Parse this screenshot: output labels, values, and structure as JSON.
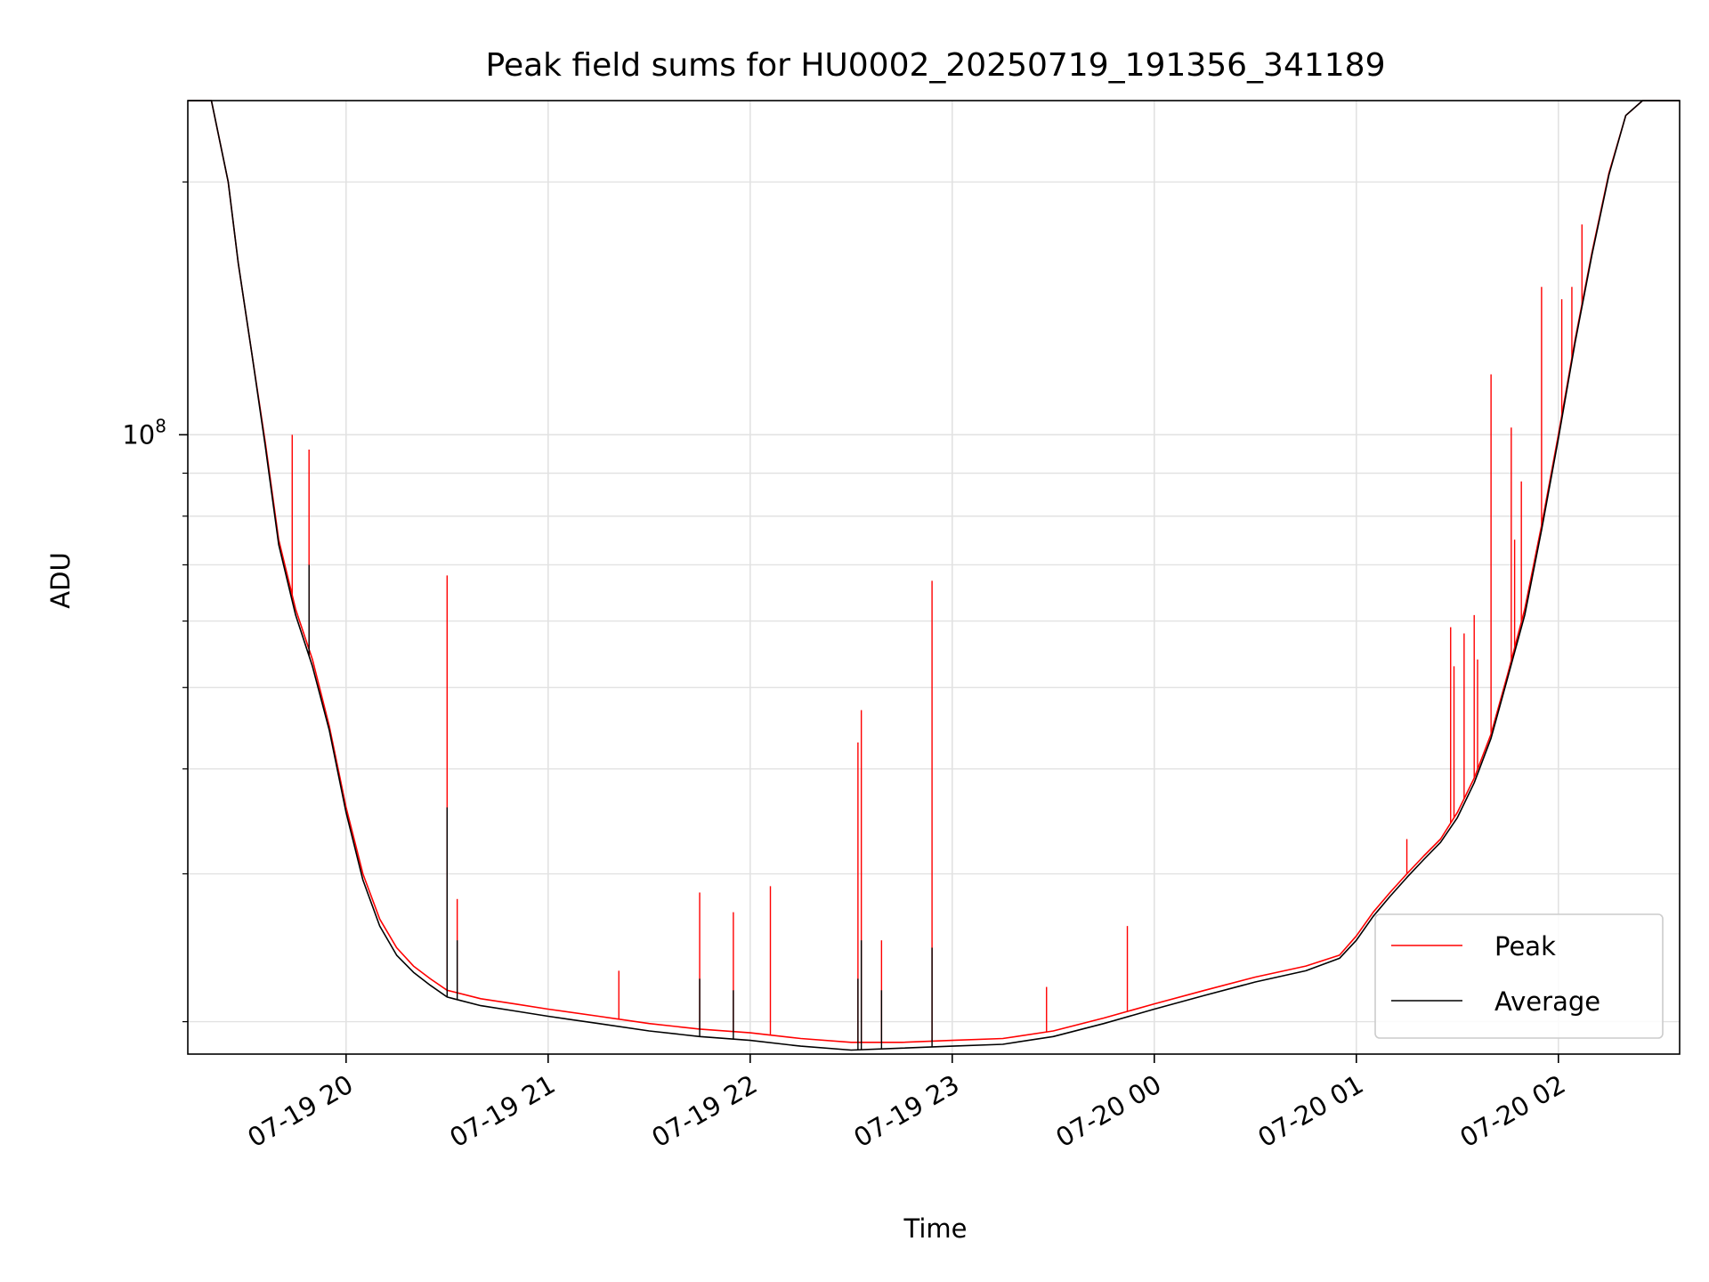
{
  "chart_data": {
    "type": "line",
    "title": "Peak field sums for HU0002_20250719_191356_341189",
    "xlabel": "Time",
    "ylabel": "ADU",
    "yscale": "log",
    "grid": true,
    "legend_placement": "lower-right",
    "xlim": [
      "2025-07-19 19:13",
      "2025-07-20 02:36"
    ],
    "ylim": [
      18300000,
      250000000
    ],
    "x_tick_labels": [
      "07-19 20",
      "07-19 21",
      "07-19 22",
      "07-19 23",
      "07-20 00",
      "07-20 01",
      "07-20 02"
    ],
    "y_tick_labels": [
      {
        "base": "10",
        "exp": "8"
      }
    ],
    "series": [
      {
        "name": "Peak",
        "color": "#ff0000",
        "x": [
          "2025-07-19 19:13",
          "2025-07-19 19:20",
          "2025-07-19 19:25",
          "2025-07-19 19:28",
          "2025-07-19 19:32",
          "2025-07-19 19:36",
          "2025-07-19 19:40",
          "2025-07-19 19:45",
          "2025-07-19 19:50",
          "2025-07-19 19:55",
          "2025-07-19 20:00",
          "2025-07-19 20:05",
          "2025-07-19 20:10",
          "2025-07-19 20:15",
          "2025-07-19 20:20",
          "2025-07-19 20:25",
          "2025-07-19 20:30",
          "2025-07-19 20:40",
          "2025-07-19 20:50",
          "2025-07-19 21:00",
          "2025-07-19 21:15",
          "2025-07-19 21:30",
          "2025-07-19 21:45",
          "2025-07-19 22:00",
          "2025-07-19 22:15",
          "2025-07-19 22:30",
          "2025-07-19 22:45",
          "2025-07-19 23:00",
          "2025-07-19 23:15",
          "2025-07-19 23:30",
          "2025-07-19 23:45",
          "2025-07-20 00:00",
          "2025-07-20 00:15",
          "2025-07-20 00:30",
          "2025-07-20 00:45",
          "2025-07-20 00:55",
          "2025-07-20 01:00",
          "2025-07-20 01:05",
          "2025-07-20 01:10",
          "2025-07-20 01:15",
          "2025-07-20 01:20",
          "2025-07-20 01:25",
          "2025-07-20 01:30",
          "2025-07-20 01:35",
          "2025-07-20 01:40",
          "2025-07-20 01:45",
          "2025-07-20 01:50",
          "2025-07-20 01:55",
          "2025-07-20 02:00",
          "2025-07-20 02:05",
          "2025-07-20 02:10",
          "2025-07-20 02:15",
          "2025-07-20 02:20",
          "2025-07-20 02:25",
          "2025-07-20 02:36"
        ],
        "y": [
          250000000,
          250000000,
          200000000,
          160000000,
          125000000,
          98000000,
          75000000,
          62000000,
          54000000,
          45000000,
          36000000,
          30000000,
          26500000,
          24500000,
          23300000,
          22500000,
          21800000,
          21300000,
          21000000,
          20700000,
          20300000,
          19900000,
          19600000,
          19400000,
          19100000,
          18900000,
          18900000,
          19000000,
          19100000,
          19500000,
          20200000,
          21000000,
          21800000,
          22600000,
          23300000,
          24000000,
          25300000,
          27000000,
          28500000,
          30000000,
          31500000,
          33000000,
          35500000,
          39000000,
          44000000,
          52000000,
          62000000,
          78000000,
          100000000,
          130000000,
          165000000,
          205000000,
          240000000,
          250000000,
          250000000
        ],
        "spikes": [
          {
            "x": "2025-07-19 19:44",
            "y": 100000000
          },
          {
            "x": "2025-07-19 19:49",
            "y": 96000000
          },
          {
            "x": "2025-07-19 20:30",
            "y": 68000000
          },
          {
            "x": "2025-07-19 20:33",
            "y": 28000000
          },
          {
            "x": "2025-07-19 21:21",
            "y": 23000000
          },
          {
            "x": "2025-07-19 21:45",
            "y": 28500000
          },
          {
            "x": "2025-07-19 21:55",
            "y": 27000000
          },
          {
            "x": "2025-07-19 22:06",
            "y": 29000000
          },
          {
            "x": "2025-07-19 22:32",
            "y": 43000000
          },
          {
            "x": "2025-07-19 22:33",
            "y": 47000000
          },
          {
            "x": "2025-07-19 22:39",
            "y": 25000000
          },
          {
            "x": "2025-07-19 22:54",
            "y": 67000000
          },
          {
            "x": "2025-07-19 23:28",
            "y": 22000000
          },
          {
            "x": "2025-07-19 23:52",
            "y": 26000000
          },
          {
            "x": "2025-07-20 01:15",
            "y": 33000000
          },
          {
            "x": "2025-07-20 01:28",
            "y": 59000000
          },
          {
            "x": "2025-07-20 01:29",
            "y": 53000000
          },
          {
            "x": "2025-07-20 01:32",
            "y": 58000000
          },
          {
            "x": "2025-07-20 01:35",
            "y": 61000000
          },
          {
            "x": "2025-07-20 01:36",
            "y": 54000000
          },
          {
            "x": "2025-07-20 01:40",
            "y": 118000000
          },
          {
            "x": "2025-07-20 01:46",
            "y": 102000000
          },
          {
            "x": "2025-07-20 01:47",
            "y": 75000000
          },
          {
            "x": "2025-07-20 01:49",
            "y": 88000000
          },
          {
            "x": "2025-07-20 01:55",
            "y": 150000000
          },
          {
            "x": "2025-07-20 02:01",
            "y": 145000000
          },
          {
            "x": "2025-07-20 02:04",
            "y": 150000000
          },
          {
            "x": "2025-07-20 02:07",
            "y": 178000000
          }
        ]
      },
      {
        "name": "Average",
        "color": "#000000",
        "x": [
          "2025-07-19 19:13",
          "2025-07-19 19:20",
          "2025-07-19 19:25",
          "2025-07-19 19:28",
          "2025-07-19 19:32",
          "2025-07-19 19:36",
          "2025-07-19 19:40",
          "2025-07-19 19:45",
          "2025-07-19 19:50",
          "2025-07-19 19:55",
          "2025-07-19 20:00",
          "2025-07-19 20:05",
          "2025-07-19 20:10",
          "2025-07-19 20:15",
          "2025-07-19 20:20",
          "2025-07-19 20:25",
          "2025-07-19 20:30",
          "2025-07-19 20:40",
          "2025-07-19 20:50",
          "2025-07-19 21:00",
          "2025-07-19 21:15",
          "2025-07-19 21:30",
          "2025-07-19 21:45",
          "2025-07-19 22:00",
          "2025-07-19 22:15",
          "2025-07-19 22:30",
          "2025-07-19 22:45",
          "2025-07-19 23:00",
          "2025-07-19 23:15",
          "2025-07-19 23:30",
          "2025-07-19 23:45",
          "2025-07-20 00:00",
          "2025-07-20 00:15",
          "2025-07-20 00:30",
          "2025-07-20 00:45",
          "2025-07-20 00:55",
          "2025-07-20 01:00",
          "2025-07-20 01:05",
          "2025-07-20 01:10",
          "2025-07-20 01:15",
          "2025-07-20 01:20",
          "2025-07-20 01:25",
          "2025-07-20 01:30",
          "2025-07-20 01:35",
          "2025-07-20 01:40",
          "2025-07-20 01:45",
          "2025-07-20 01:50",
          "2025-07-20 01:55",
          "2025-07-20 02:00",
          "2025-07-20 02:05",
          "2025-07-20 02:10",
          "2025-07-20 02:15",
          "2025-07-20 02:20",
          "2025-07-20 02:25",
          "2025-07-20 02:36"
        ],
        "y": [
          250000000,
          250000000,
          200000000,
          160000000,
          125000000,
          97000000,
          74000000,
          61000000,
          53000000,
          44500000,
          35500000,
          29500000,
          26000000,
          24000000,
          22900000,
          22100000,
          21400000,
          20900000,
          20600000,
          20300000,
          19900000,
          19500000,
          19200000,
          19000000,
          18700000,
          18500000,
          18600000,
          18700000,
          18800000,
          19200000,
          19900000,
          20700000,
          21500000,
          22300000,
          23000000,
          23800000,
          25000000,
          26700000,
          28200000,
          29700000,
          31200000,
          32700000,
          35000000,
          38500000,
          43500000,
          51500000,
          61000000,
          77000000,
          99000000,
          129000000,
          164000000,
          204000000,
          240000000,
          250000000,
          250000000
        ],
        "spikes": [
          {
            "x": "2025-07-19 19:49",
            "y": 70000000
          },
          {
            "x": "2025-07-19 20:30",
            "y": 36000000
          },
          {
            "x": "2025-07-19 20:33",
            "y": 25000000
          },
          {
            "x": "2025-07-19 21:45",
            "y": 22500000
          },
          {
            "x": "2025-07-19 21:55",
            "y": 21800000
          },
          {
            "x": "2025-07-19 22:32",
            "y": 22500000
          },
          {
            "x": "2025-07-19 22:33",
            "y": 25000000
          },
          {
            "x": "2025-07-19 22:39",
            "y": 21800000
          },
          {
            "x": "2025-07-19 22:54",
            "y": 24500000
          }
        ]
      }
    ]
  }
}
